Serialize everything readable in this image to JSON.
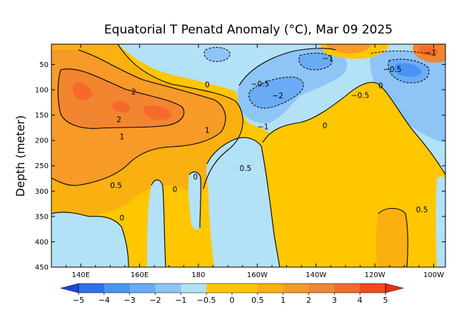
{
  "chart_data": {
    "type": "heatmap",
    "title": "Equatorial T Penatd Anomaly (°C), Mar 09 2025",
    "xlabel": "",
    "ylabel": "Depth (meter)",
    "x_range": [
      130,
      264
    ],
    "y_range": [
      450,
      10
    ],
    "x_ticks": [
      {
        "value": 140,
        "label": "140E"
      },
      {
        "value": 160,
        "label": "160E"
      },
      {
        "value": 180,
        "label": "180"
      },
      {
        "value": 200,
        "label": "160W"
      },
      {
        "value": 220,
        "label": "140W"
      },
      {
        "value": 240,
        "label": "120W"
      },
      {
        "value": 260,
        "label": "100W"
      }
    ],
    "y_ticks": [
      {
        "value": 50,
        "label": "50"
      },
      {
        "value": 100,
        "label": "100"
      },
      {
        "value": 150,
        "label": "150"
      },
      {
        "value": 200,
        "label": "200"
      },
      {
        "value": 250,
        "label": "250"
      },
      {
        "value": 300,
        "label": "300"
      },
      {
        "value": 350,
        "label": "350"
      },
      {
        "value": 400,
        "label": "400"
      },
      {
        "value": 450,
        "label": "450"
      }
    ],
    "contour_levels": [
      {
        "value": -5,
        "label": "−5",
        "color": "#1a46e0"
      },
      {
        "value": -4,
        "label": "−4",
        "color": "#2f6ff0"
      },
      {
        "value": -3,
        "label": "−3",
        "color": "#4a93f4"
      },
      {
        "value": -2,
        "label": "−2",
        "color": "#6aabf6"
      },
      {
        "value": -1,
        "label": "−1",
        "color": "#8ec4f6"
      },
      {
        "value": -0.5,
        "label": "−0.5",
        "color": "#b3e1f6"
      },
      {
        "value": 0,
        "label": "0",
        "color": "#ffc700"
      },
      {
        "value": 0.5,
        "label": "0.5",
        "color": "#fbb011"
      },
      {
        "value": 1,
        "label": "1",
        "color": "#f79a28"
      },
      {
        "value": 2,
        "label": "2",
        "color": "#f28530"
      },
      {
        "value": 3,
        "label": "3",
        "color": "#f56a2a"
      },
      {
        "value": 4,
        "label": "4",
        "color": "#f44a1c"
      },
      {
        "value": 5,
        "label": "5",
        "color": "#e72e12"
      }
    ],
    "colors": {
      "neg_0_5": "#b3e1f6",
      "neg_1": "#8ec4f6",
      "neg_2": "#6aabf6",
      "neg_3": "#4a93f4",
      "pos_0": "#ffc700",
      "pos_0_5": "#fbb011",
      "pos_1": "#f79a28",
      "pos_2": "#f28530",
      "pos_3": "#f56a2a"
    },
    "contour_labels": [
      {
        "x": 183,
        "y": 90,
        "text": "0"
      },
      {
        "x": 201,
        "y": 89,
        "text": "−0.5"
      },
      {
        "x": 207,
        "y": 112,
        "text": "−2"
      },
      {
        "x": 202,
        "y": 173,
        "text": "−1"
      },
      {
        "x": 224,
        "y": 38,
        "text": "−1"
      },
      {
        "x": 223,
        "y": 171,
        "text": "0"
      },
      {
        "x": 235,
        "y": 111,
        "text": "−0.5"
      },
      {
        "x": 246,
        "y": 60,
        "text": "−0.5"
      },
      {
        "x": 242,
        "y": 92,
        "text": "0"
      },
      {
        "x": 259,
        "y": 27,
        "text": "−1"
      },
      {
        "x": 158,
        "y": 104,
        "text": "2"
      },
      {
        "x": 153,
        "y": 159,
        "text": "2"
      },
      {
        "x": 154,
        "y": 193,
        "text": "1"
      },
      {
        "x": 183,
        "y": 180,
        "text": "1"
      },
      {
        "x": 196,
        "y": 255,
        "text": "0.5"
      },
      {
        "x": 152,
        "y": 289,
        "text": "0.5"
      },
      {
        "x": 154,
        "y": 353,
        "text": "0"
      },
      {
        "x": 172,
        "y": 297,
        "text": "0"
      },
      {
        "x": 179,
        "y": 272,
        "text": "0"
      },
      {
        "x": 256,
        "y": 337,
        "text": "0.5"
      }
    ]
  }
}
